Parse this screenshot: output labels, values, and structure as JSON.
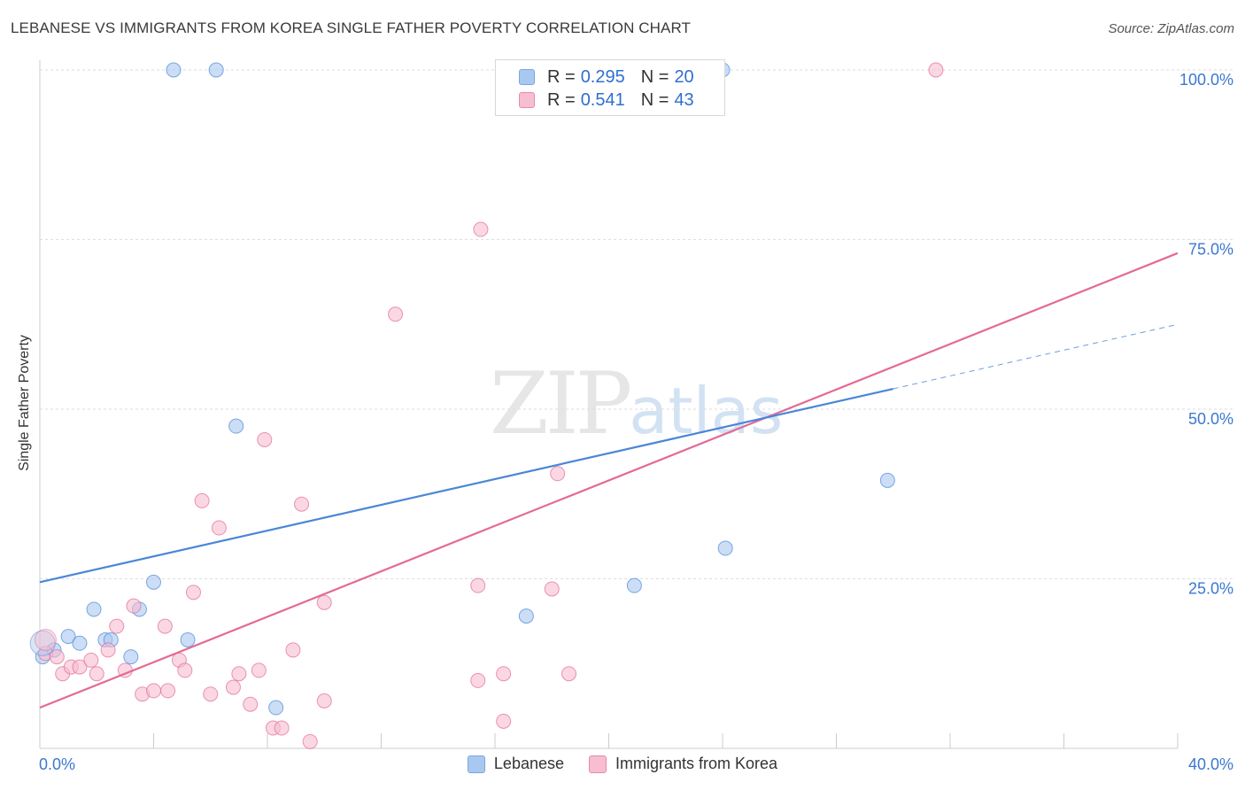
{
  "header": {
    "title": "LEBANESE VS IMMIGRANTS FROM KOREA SINGLE FATHER POVERTY CORRELATION CHART",
    "source": "Source: ZipAtlas.com"
  },
  "watermark": {
    "zip": "ZIP",
    "atlas": "atlas"
  },
  "legend_top": [
    {
      "r_label": "R =",
      "r_value": "0.295",
      "n_label": "N =",
      "n_value": "20",
      "color": "#a9c8f0",
      "border": "#7aa7e0"
    },
    {
      "r_label": "R =",
      "r_value": "0.541",
      "n_label": "N =",
      "n_value": "43",
      "color": "#f7bdd0",
      "border": "#e98aab"
    }
  ],
  "legend_bottom": [
    {
      "label": "Lebanese",
      "color": "#a9c8f0",
      "border": "#7aa7e0"
    },
    {
      "label": "Immigrants from Korea",
      "color": "#f7bdd0",
      "border": "#e98aab"
    }
  ],
  "chart_data": {
    "type": "scatter",
    "title": "LEBANESE VS IMMIGRANTS FROM KOREA SINGLE FATHER POVERTY CORRELATION CHART",
    "xlabel": "",
    "ylabel": "Single Father Poverty",
    "xlim": [
      0,
      40
    ],
    "ylim": [
      0,
      100
    ],
    "x_tick_labels": [
      "0.0%",
      "40.0%"
    ],
    "y_ticks": [
      25,
      50,
      75,
      100
    ],
    "y_tick_labels": [
      "25.0%",
      "50.0%",
      "75.0%",
      "100.0%"
    ],
    "grid": true,
    "legend_position": "top-center",
    "series": [
      {
        "name": "Lebanese",
        "color": "#4a86d8",
        "fill": "#a9c8f0",
        "points": [
          [
            0.1,
            13.5
          ],
          [
            0.5,
            14.5
          ],
          [
            1.0,
            16.5
          ],
          [
            1.4,
            15.5
          ],
          [
            1.9,
            20.5
          ],
          [
            2.3,
            16.0
          ],
          [
            2.5,
            16.0
          ],
          [
            3.2,
            13.5
          ],
          [
            3.5,
            20.5
          ],
          [
            4.0,
            24.5
          ],
          [
            4.7,
            100.0
          ],
          [
            5.2,
            16.0
          ],
          [
            6.2,
            100.0
          ],
          [
            6.9,
            47.5
          ],
          [
            8.3,
            6.0
          ],
          [
            17.1,
            19.5
          ],
          [
            20.9,
            24.0
          ],
          [
            24.1,
            29.5
          ],
          [
            24.0,
            100.0
          ],
          [
            29.8,
            39.5
          ]
        ],
        "trend": {
          "x": [
            0,
            30
          ],
          "y": [
            24.5,
            53.0
          ]
        },
        "trend_extension": {
          "x": [
            30,
            40
          ],
          "y": [
            53.0,
            62.5
          ]
        }
      },
      {
        "name": "Immigrants from Korea",
        "color": "#e36a94",
        "fill": "#f7bdd0",
        "points": [
          [
            0.2,
            14.0
          ],
          [
            0.6,
            13.5
          ],
          [
            0.8,
            11.0
          ],
          [
            1.1,
            12.0
          ],
          [
            1.4,
            12.0
          ],
          [
            1.8,
            13.0
          ],
          [
            2.0,
            11.0
          ],
          [
            2.4,
            14.5
          ],
          [
            2.7,
            18.0
          ],
          [
            3.0,
            11.5
          ],
          [
            3.3,
            21.0
          ],
          [
            3.6,
            8.0
          ],
          [
            4.0,
            8.5
          ],
          [
            4.4,
            18.0
          ],
          [
            4.5,
            8.5
          ],
          [
            4.9,
            13.0
          ],
          [
            5.1,
            11.5
          ],
          [
            5.4,
            23.0
          ],
          [
            5.7,
            36.5
          ],
          [
            6.0,
            8.0
          ],
          [
            6.3,
            32.5
          ],
          [
            6.8,
            9.0
          ],
          [
            7.0,
            11.0
          ],
          [
            7.4,
            6.5
          ],
          [
            7.7,
            11.5
          ],
          [
            7.9,
            45.5
          ],
          [
            8.2,
            3.0
          ],
          [
            8.5,
            3.0
          ],
          [
            8.9,
            14.5
          ],
          [
            9.2,
            36.0
          ],
          [
            9.5,
            1.0
          ],
          [
            10.0,
            7.0
          ],
          [
            10.0,
            21.5
          ],
          [
            12.5,
            64.0
          ],
          [
            15.4,
            24.0
          ],
          [
            15.4,
            10.0
          ],
          [
            15.5,
            76.5
          ],
          [
            16.3,
            4.0
          ],
          [
            16.3,
            11.0
          ],
          [
            18.0,
            23.5
          ],
          [
            18.2,
            40.5
          ],
          [
            18.6,
            11.0
          ],
          [
            31.5,
            100.0
          ]
        ],
        "trend": {
          "x": [
            0,
            40
          ],
          "y": [
            6.0,
            73.0
          ]
        }
      }
    ]
  }
}
